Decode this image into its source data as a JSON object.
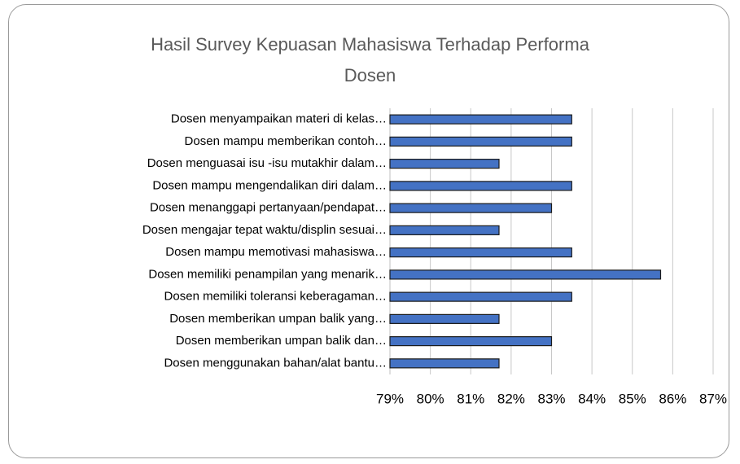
{
  "chart_data": {
    "type": "bar",
    "orientation": "horizontal",
    "title": "Hasil Survey Kepuasan Mahasiswa Terhadap Performa Dosen",
    "categories": [
      "Dosen menyampaikan materi di kelas…",
      "Dosen mampu memberikan contoh…",
      "Dosen menguasai isu -isu mutakhir dalam…",
      "Dosen mampu mengendalikan diri dalam…",
      "Dosen menanggapi pertanyaan/pendapat…",
      "Dosen mengajar tepat waktu/displin sesuai…",
      "Dosen mampu memotivasi mahasiswa…",
      "Dosen memiliki penampilan yang menarik…",
      "Dosen memiliki toleransi keberagaman…",
      "Dosen memberikan umpan balik yang…",
      "Dosen memberikan umpan balik dan…",
      "Dosen menggunakan bahan/alat bantu…"
    ],
    "values": [
      83.5,
      83.5,
      81.7,
      83.5,
      83.0,
      81.7,
      83.5,
      85.7,
      83.5,
      81.7,
      83.0,
      81.7
    ],
    "color": "#4472c4",
    "xlim": [
      79,
      87
    ],
    "xticks": [
      {
        "value": 79,
        "label": "79%"
      },
      {
        "value": 80,
        "label": "80%"
      },
      {
        "value": 81,
        "label": "81%"
      },
      {
        "value": 82,
        "label": "82%"
      },
      {
        "value": 83,
        "label": "83%"
      },
      {
        "value": 84,
        "label": "84%"
      },
      {
        "value": 85,
        "label": "85%"
      },
      {
        "value": 86,
        "label": "86%"
      },
      {
        "value": 87,
        "label": "87%"
      }
    ],
    "grid": true
  }
}
